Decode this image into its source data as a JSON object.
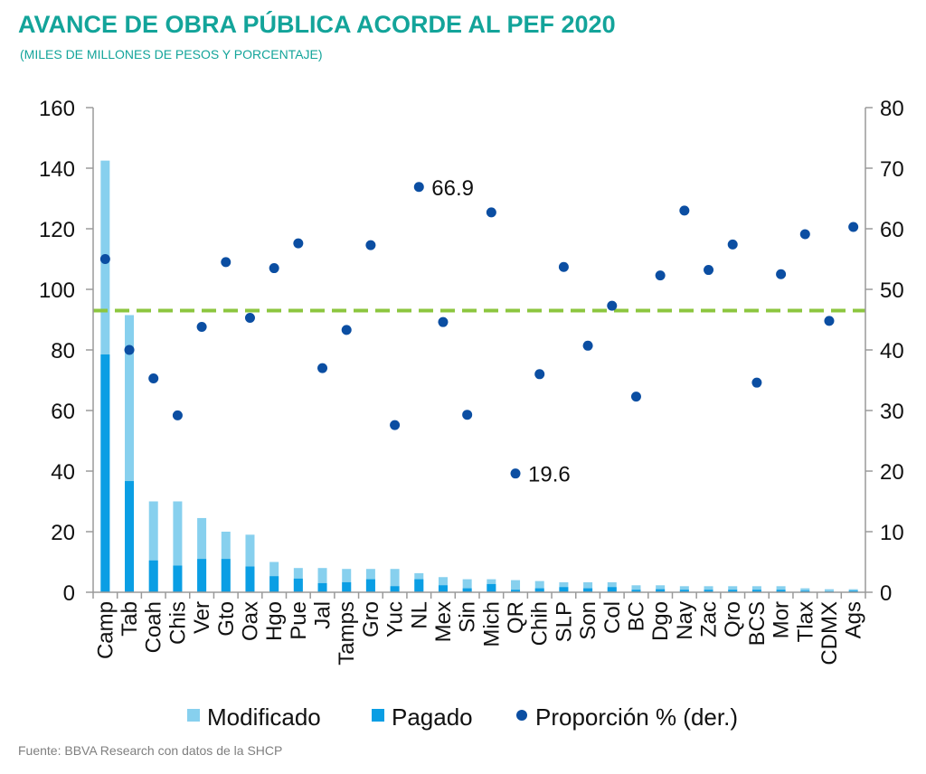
{
  "header": {
    "title": "AVANCE DE OBRA PÚBLICA ACORDE AL PEF 2020",
    "subtitle": "(MILES DE MILLONES DE PESOS Y PORCENTAJE)"
  },
  "footer": {
    "source": "Fuente: BBVA Research con datos de la SHCP"
  },
  "colors": {
    "title": "#13a49a",
    "modificado": "#87d0ee",
    "pagado": "#0a9ee4",
    "proporcion": "#0b4ea2",
    "reference_line": "#8cc63f",
    "axis": "#9a9a9a"
  },
  "chart_data": {
    "type": "bar",
    "title": "AVANCE DE OBRA PÚBLICA ACORDE AL PEF 2020",
    "subtitle": "(MILES DE MILLONES DE PESOS Y PORCENTAJE)",
    "categories": [
      "Camp",
      "Tab",
      "Coah",
      "Chis",
      "Ver",
      "Gto",
      "Oax",
      "Hgo",
      "Pue",
      "Jal",
      "Tamps",
      "Gro",
      "Yuc",
      "NL",
      "Mex",
      "Sin",
      "Mich",
      "QR",
      "Chih",
      "SLP",
      "Son",
      "Col",
      "BC",
      "Dgo",
      "Nay",
      "Zac",
      "Qro",
      "BCS",
      "Mor",
      "Tlax",
      "CDMX",
      "Ags"
    ],
    "series": [
      {
        "name": "Modificado",
        "type": "bar",
        "axis": "left",
        "values": [
          142.5,
          91.5,
          30,
          30,
          24.5,
          20,
          19,
          10,
          8,
          8,
          7.7,
          7.7,
          7.7,
          6.3,
          5,
          4.3,
          4.3,
          4,
          3.7,
          3.3,
          3.3,
          3.3,
          2.3,
          2.3,
          2,
          2,
          2,
          2,
          2,
          1.3,
          1,
          1
        ]
      },
      {
        "name": "Pagado",
        "type": "bar",
        "axis": "left",
        "values": [
          78.5,
          36.7,
          10.5,
          8.8,
          11,
          11,
          8.5,
          5.3,
          4.5,
          3,
          3.3,
          4.3,
          2,
          4.3,
          2.3,
          1.3,
          2.7,
          0.8,
          1.3,
          1.7,
          1.3,
          1.7,
          0.8,
          1,
          0.8,
          0.8,
          0.8,
          0.8,
          0.8,
          0.5,
          0.3,
          0.5
        ]
      },
      {
        "name": "Proporción % (der.)",
        "type": "scatter",
        "axis": "right",
        "values": [
          55,
          40,
          35.3,
          29.2,
          43.8,
          54.5,
          45.3,
          53.5,
          57.6,
          37,
          43.3,
          57.3,
          27.6,
          66.9,
          44.6,
          29.3,
          62.7,
          19.6,
          36,
          53.7,
          40.7,
          47.3,
          32.3,
          52.3,
          63,
          53.2,
          57.4,
          34.6,
          52.5,
          59.1,
          44.8,
          60.3
        ]
      }
    ],
    "data_labels": [
      {
        "category": "NL",
        "text": "66.9"
      },
      {
        "category": "QR",
        "text": "19.6"
      }
    ],
    "reference_line": {
      "axis": "right",
      "value": 46.5,
      "style": "dashed"
    },
    "ylim": [
      0,
      160
    ],
    "y2lim": [
      0,
      80
    ],
    "yticks": [
      "0",
      "20",
      "40",
      "60",
      "80",
      "100",
      "120",
      "140",
      "160"
    ],
    "y2ticks": [
      "0",
      "10",
      "20",
      "30",
      "40",
      "50",
      "60",
      "70",
      "80"
    ],
    "grid": false,
    "legend_position": "bottom"
  }
}
